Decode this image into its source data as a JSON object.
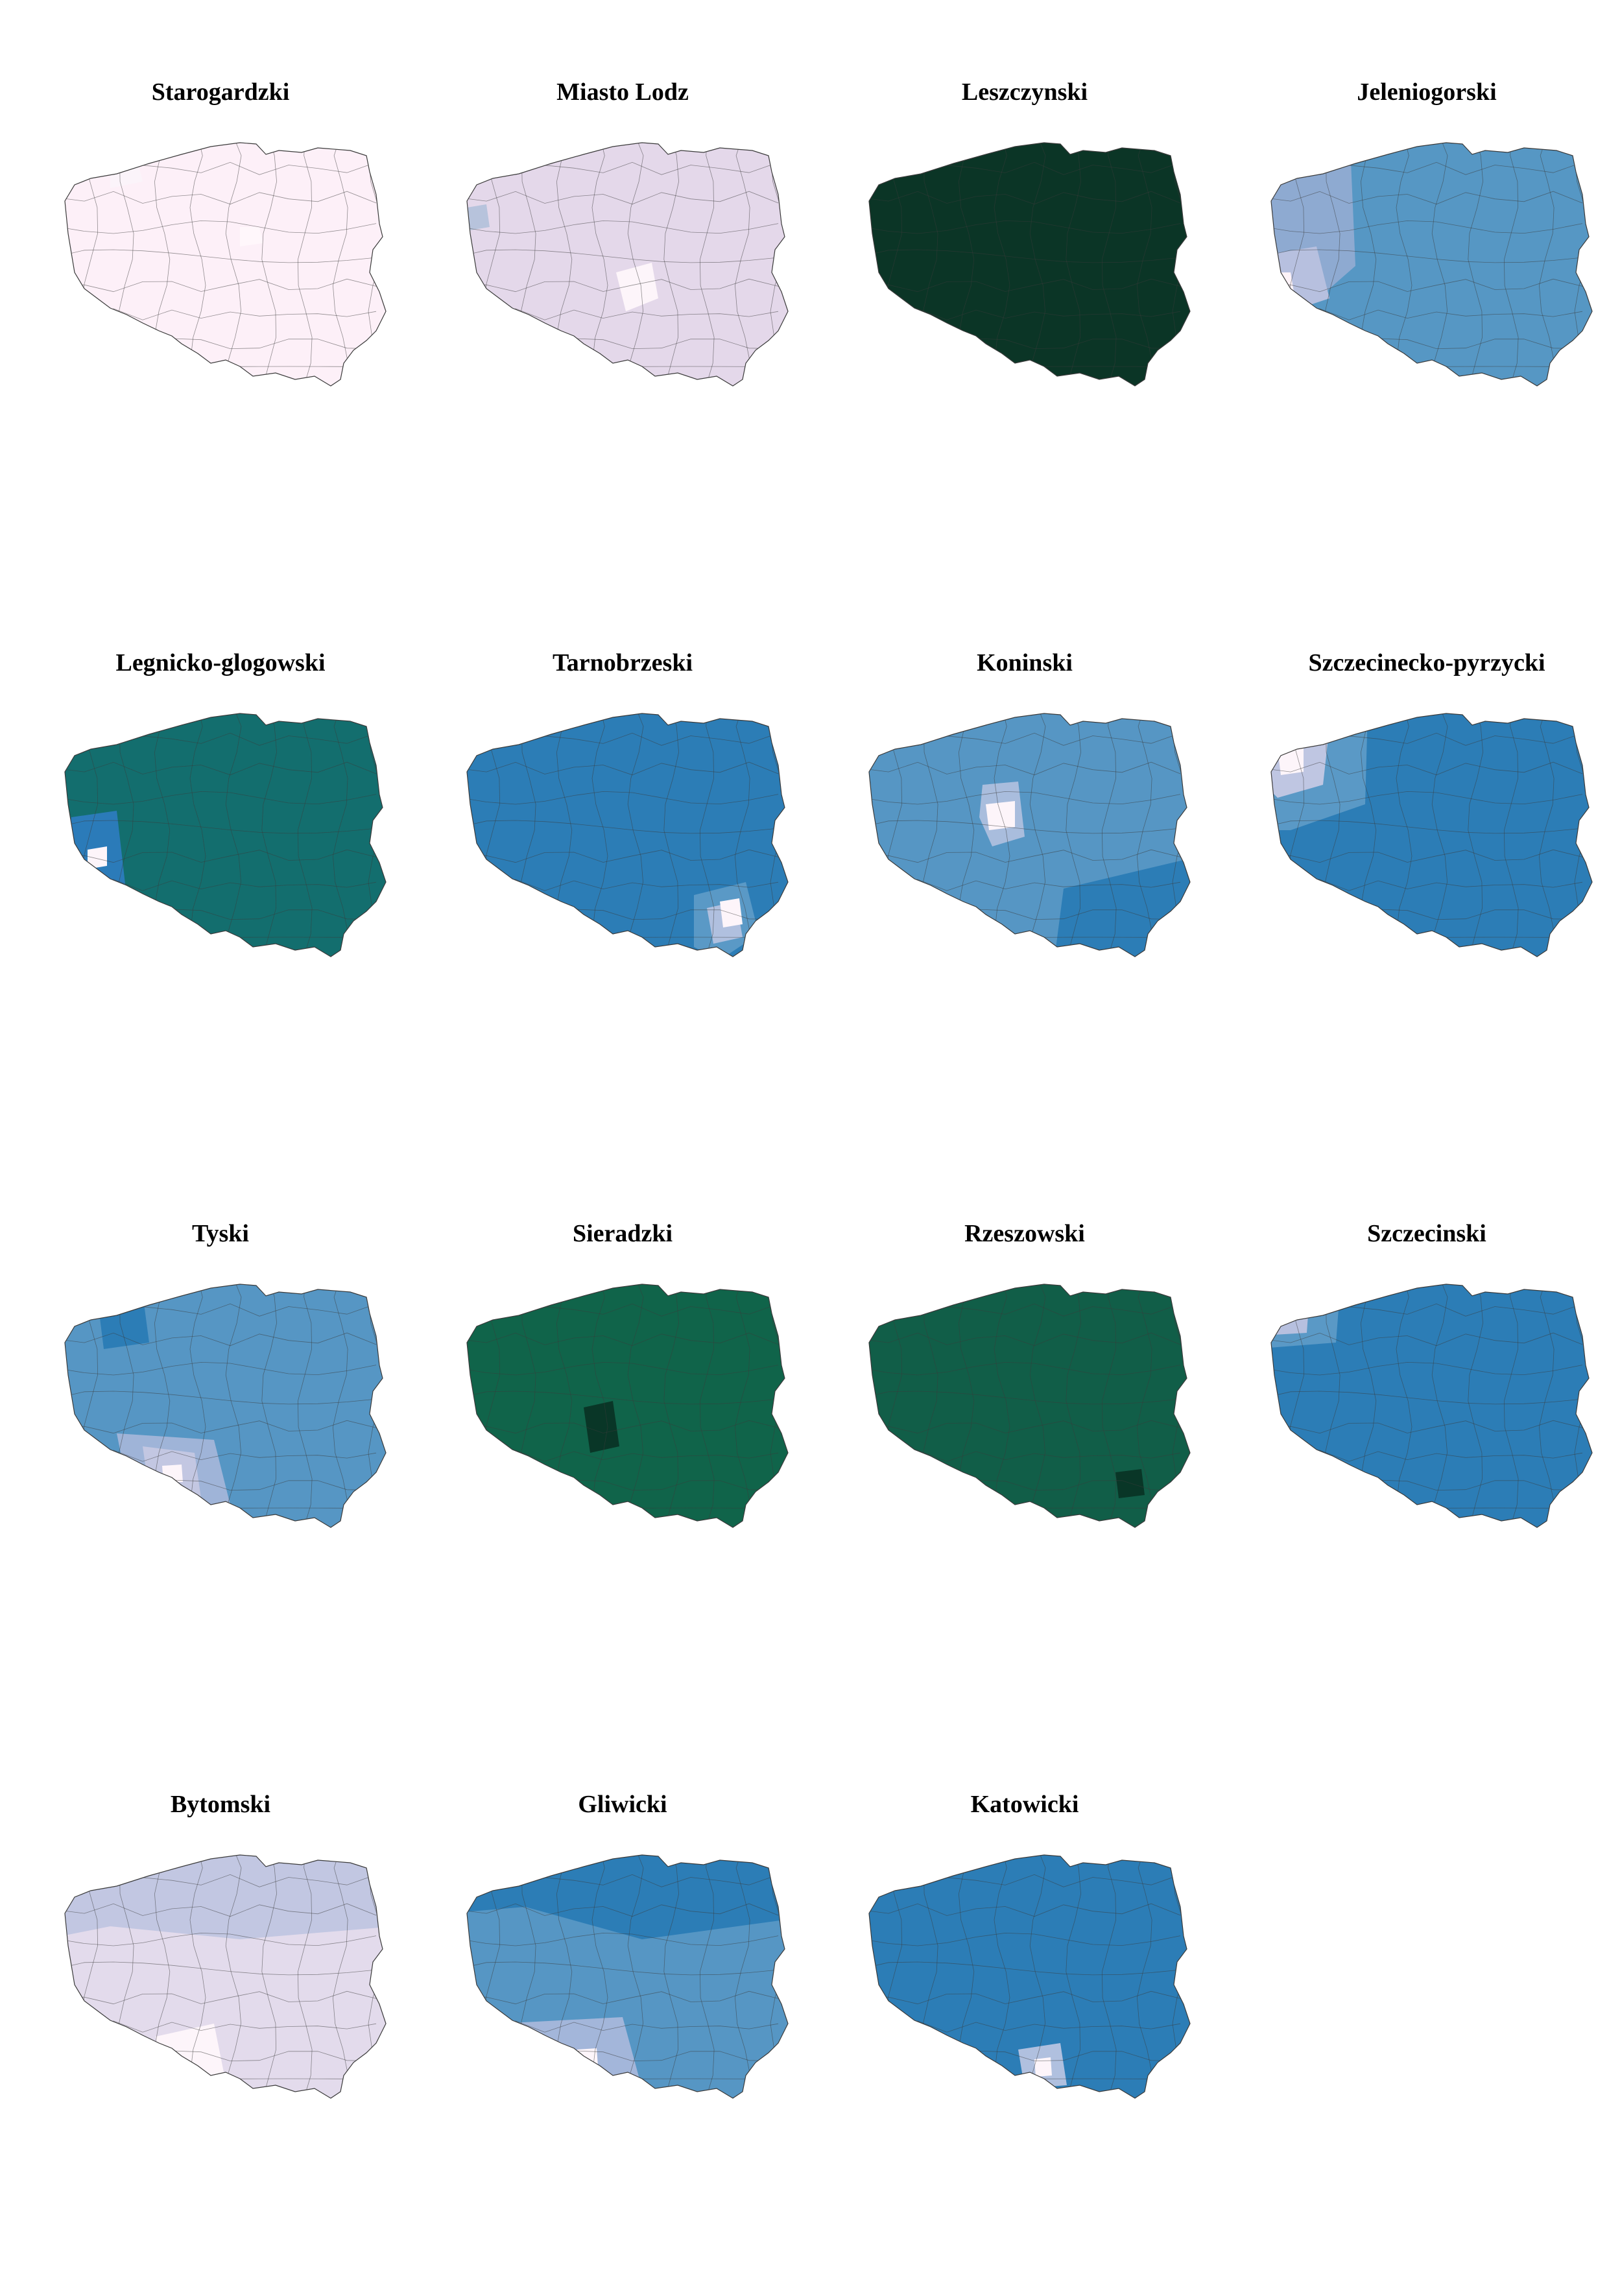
{
  "figure": {
    "panels": [
      {
        "title": "Starogardzki",
        "base": "#fdf0f8",
        "regions": [
          {
            "color": "#fbf4fa"
          },
          {
            "color": "#fff7fb"
          }
        ]
      },
      {
        "title": "Miasto Lodz",
        "base": "#e4d8ea",
        "regions": [
          {
            "color": "#b7c3dc"
          },
          {
            "color": "#fdf5fa"
          }
        ]
      },
      {
        "title": "Leszczynski",
        "base": "#0b3526",
        "regions": [
          {
            "color": "#0b3526"
          }
        ]
      },
      {
        "title": "Jeleniogorski",
        "base": "#5697c4",
        "regions": [
          {
            "color": "#8eaad1"
          },
          {
            "color": "#b7c0df"
          },
          {
            "color": "#fdf3f8"
          }
        ]
      },
      {
        "title": "Legnicko-glogowski",
        "base": "#136e6e",
        "regions": [
          {
            "color": "#2b7bb9"
          },
          {
            "color": "#fdf5fa"
          }
        ]
      },
      {
        "title": "Tarnobrzeski",
        "base": "#2c7db6",
        "regions": [
          {
            "color": "#5a99c6"
          },
          {
            "color": "#b0c0df"
          },
          {
            "color": "#fdf5fa"
          }
        ]
      },
      {
        "title": "Koninski",
        "base": "#5696c4",
        "regions": [
          {
            "color": "#2c7db6"
          },
          {
            "color": "#a9bddd"
          },
          {
            "color": "#fdf5fa"
          }
        ]
      },
      {
        "title": "Szczecinecko-pyrzycki",
        "base": "#2c7db6",
        "regions": [
          {
            "color": "#5a99c6"
          },
          {
            "color": "#bfc6e2"
          },
          {
            "color": "#fdf5fa"
          }
        ]
      },
      {
        "title": "Tyski",
        "base": "#5696c4",
        "regions": [
          {
            "color": "#2c7db6"
          },
          {
            "color": "#9fb4d8"
          },
          {
            "color": "#c3c7e2"
          },
          {
            "color": "#fdf5fa"
          }
        ]
      },
      {
        "title": "Sieradzki",
        "base": "#10644a",
        "regions": [
          {
            "color": "#093627"
          }
        ]
      },
      {
        "title": "Rzeszowski",
        "base": "#115e48",
        "regions": [
          {
            "color": "#093627"
          }
        ]
      },
      {
        "title": "Szczecinski",
        "base": "#2c7db6",
        "regions": [
          {
            "color": "#5a99c6"
          },
          {
            "color": "#b7c0df"
          },
          {
            "color": "#fdf5fa"
          }
        ]
      },
      {
        "title": "Bytomski",
        "base": "#e3dbec",
        "regions": [
          {
            "color": "#c2c7e2"
          },
          {
            "color": "#fdf5fa"
          }
        ]
      },
      {
        "title": "Gliwicki",
        "base": "#5696c4",
        "regions": [
          {
            "color": "#2c7db6"
          },
          {
            "color": "#a3b6da"
          },
          {
            "color": "#fdf5fa"
          }
        ]
      },
      {
        "title": "Katowicki",
        "base": "#2c7db6",
        "regions": [
          {
            "color": "#b0c0df"
          },
          {
            "color": "#fdf5fa"
          }
        ]
      }
    ],
    "stroke_color": "#3a3a3a"
  }
}
